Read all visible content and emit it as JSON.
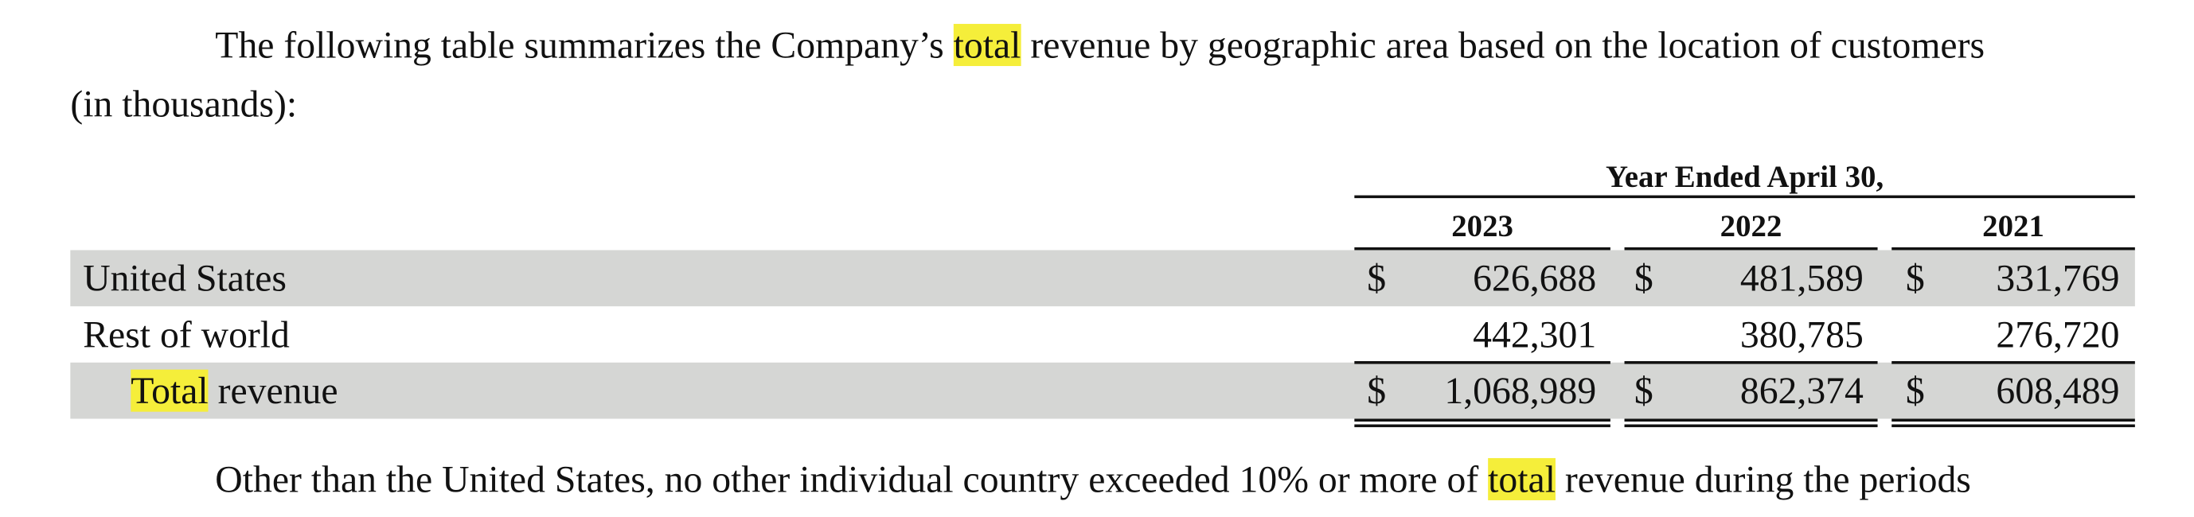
{
  "intro": {
    "before": "The following table summarizes the Company’s ",
    "highlight": "total",
    "after_line1": " revenue by geographic area based on the location of customers",
    "line2": "(in thousands):"
  },
  "table": {
    "period_header": "Year Ended April 30,",
    "columns": [
      "2023",
      "2022",
      "2021"
    ],
    "rows": [
      {
        "label": "United States",
        "cells": [
          {
            "symbol": "$",
            "value": "626,688"
          },
          {
            "symbol": "$",
            "value": "481,589"
          },
          {
            "symbol": "$",
            "value": "331,769"
          }
        ]
      },
      {
        "label": "Rest of world",
        "cells": [
          {
            "value": "442,301"
          },
          {
            "value": "380,785"
          },
          {
            "value": "276,720"
          }
        ]
      },
      {
        "label_highlight": "Total",
        "label": " revenue",
        "cells": [
          {
            "symbol": "$",
            "value": "1,068,989"
          },
          {
            "symbol": "$",
            "value": "862,374"
          },
          {
            "symbol": "$",
            "value": "608,489"
          }
        ]
      }
    ]
  },
  "outro": {
    "before": "Other than the United States, no other individual country exceeded 10% or more of ",
    "highlight": "total",
    "after": " revenue during the periods"
  }
}
